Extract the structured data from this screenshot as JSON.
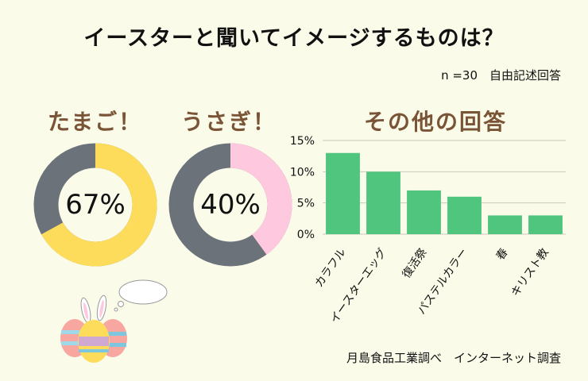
{
  "title": "イースターと聞いてイメージするものは？",
  "note": "n =30　自由記述回答",
  "footer": "月島食品工業調べ　インターネット調査",
  "colors": {
    "background": "#fbfbe9",
    "track": "#6b727a",
    "egg": "#fddc5c",
    "bunny": "#fec8de",
    "bar": "#4fc57e",
    "heading": "#7a5436"
  },
  "chart_data": [
    {
      "type": "pie",
      "title": "たまご！",
      "value_label": "67%",
      "values": [
        67,
        33
      ],
      "color": "#fddc5c"
    },
    {
      "type": "pie",
      "title": "うさぎ！",
      "value_label": "40%",
      "values": [
        40,
        60
      ],
      "color": "#fec8de"
    },
    {
      "type": "bar",
      "title": "その他の回答",
      "categories": [
        "カラフル",
        "イースターエッグ",
        "復活祭",
        "パステルカラー",
        "春",
        "キリスト教"
      ],
      "values": [
        13,
        10,
        7,
        6,
        3,
        3
      ],
      "ylim": [
        0,
        15
      ],
      "yticks": [
        "0%",
        "5%",
        "10%",
        "15%"
      ],
      "ytick_values": [
        0,
        5,
        10,
        15
      ],
      "grid": true
    }
  ]
}
